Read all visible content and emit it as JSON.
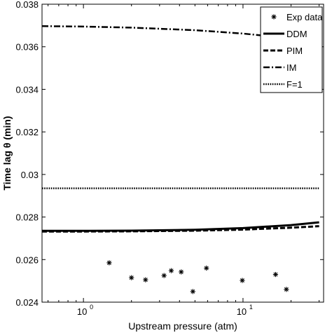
{
  "chart_data": {
    "type": "line",
    "xlabel": "Upstream pressure (atm)",
    "ylabel": "Time lag θ (min)",
    "x_scale": "log",
    "xlim": [
      0.55,
      32
    ],
    "ylim": [
      0.024,
      0.038
    ],
    "grid": false,
    "legend_position": "top-right",
    "x_ticks": [
      {
        "value": 1,
        "base": "10",
        "exp": "0"
      },
      {
        "value": 10,
        "base": "10",
        "exp": "1"
      }
    ],
    "y_ticks": [
      0.024,
      0.026,
      0.028,
      0.03,
      0.032,
      0.034,
      0.036,
      0.038
    ],
    "y_tick_labels": [
      "0.024",
      "0.026",
      "0.028",
      "0.03",
      "0.032",
      "0.034",
      "0.036",
      "0.038"
    ],
    "series": [
      {
        "name": "Exp data",
        "style": "markers",
        "marker": "*",
        "points": [
          [
            1.45,
            0.02585
          ],
          [
            2.0,
            0.02515
          ],
          [
            2.45,
            0.02505
          ],
          [
            3.2,
            0.02525
          ],
          [
            3.55,
            0.02548
          ],
          [
            4.1,
            0.02542
          ],
          [
            4.85,
            0.0245
          ],
          [
            5.9,
            0.0256
          ],
          [
            9.9,
            0.02502
          ],
          [
            16.0,
            0.0253
          ],
          [
            18.7,
            0.0246
          ]
        ]
      },
      {
        "name": "DDM",
        "style": "solid",
        "points": [
          [
            0.55,
            0.02735
          ],
          [
            1,
            0.02735
          ],
          [
            2,
            0.02736
          ],
          [
            5,
            0.0274
          ],
          [
            10,
            0.02748
          ],
          [
            20,
            0.02762
          ],
          [
            30,
            0.02775
          ]
        ]
      },
      {
        "name": "PIM",
        "style": "dashed",
        "points": [
          [
            0.55,
            0.02732
          ],
          [
            1,
            0.02732
          ],
          [
            2,
            0.02733
          ],
          [
            5,
            0.02736
          ],
          [
            10,
            0.02741
          ],
          [
            20,
            0.0275
          ],
          [
            30,
            0.02757
          ]
        ]
      },
      {
        "name": "IM",
        "style": "dashdot",
        "points": [
          [
            0.55,
            0.03697
          ],
          [
            1,
            0.03695
          ],
          [
            2,
            0.0369
          ],
          [
            5,
            0.03678
          ],
          [
            10,
            0.03662
          ],
          [
            20,
            0.0364
          ],
          [
            30,
            0.0363
          ]
        ]
      },
      {
        "name": "F=1",
        "style": "dotted",
        "points": [
          [
            0.55,
            0.02935
          ],
          [
            30,
            0.02935
          ]
        ]
      }
    ]
  }
}
